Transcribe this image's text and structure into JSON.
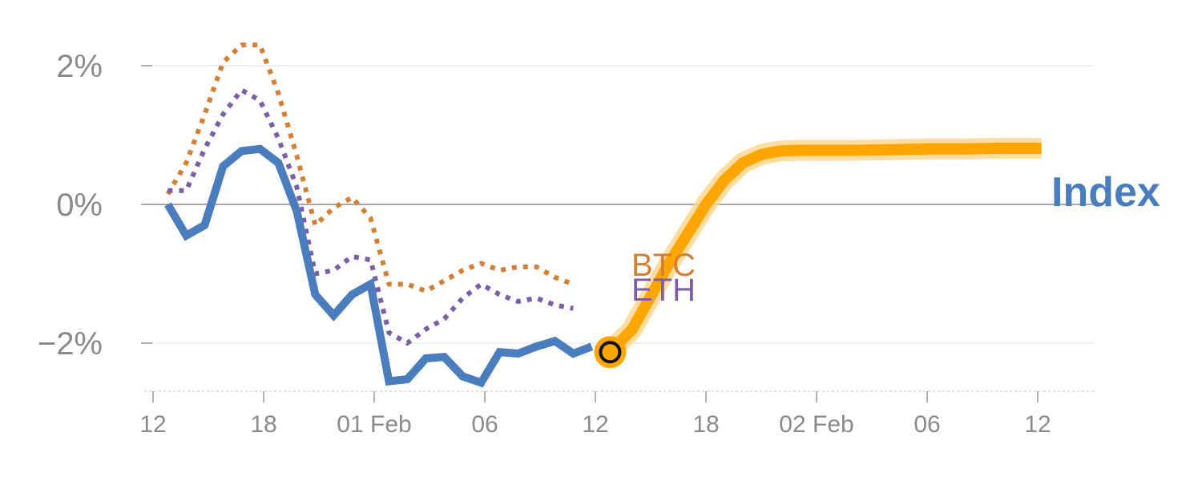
{
  "chart_data": {
    "type": "line",
    "title": "",
    "xlabel": "",
    "ylabel": "",
    "ylim": [
      -2.7,
      2.6
    ],
    "grid": true,
    "y_ticks": [
      {
        "value": 2,
        "label": "2%"
      },
      {
        "value": 0,
        "label": "0%"
      },
      {
        "value": -2,
        "label": "−2%"
      }
    ],
    "x_ticks": [
      {
        "index": 0,
        "label": "12"
      },
      {
        "index": 6,
        "label": "18"
      },
      {
        "index": 12,
        "label": "01 Feb"
      },
      {
        "index": 18,
        "label": "06"
      },
      {
        "index": 24,
        "label": "12"
      },
      {
        "index": 30,
        "label": "18"
      },
      {
        "index": 36,
        "label": "02 Feb"
      },
      {
        "index": 42,
        "label": "06"
      },
      {
        "index": 48,
        "label": "12"
      }
    ],
    "colors": {
      "index": "#4a7dbd",
      "btc": "#d47f33",
      "eth": "#7b5ea7",
      "forecast": "#ffa500",
      "forecast_glow": "#ffd58a",
      "marker_ring": "#ffa500",
      "marker_center": "#ffa500"
    },
    "series": [
      {
        "key": "index",
        "name": "Index",
        "style": "solid",
        "x_start": 0.8,
        "values": [
          0.0,
          -0.45,
          -0.3,
          0.55,
          0.77,
          0.8,
          0.6,
          -0.1,
          -1.3,
          -1.6,
          -1.3,
          -1.15,
          -2.55,
          -2.52,
          -2.22,
          -2.2,
          -2.48,
          -2.57,
          -2.13,
          -2.15,
          -2.05,
          -1.97,
          -2.15,
          -2.05
        ]
      },
      {
        "key": "btc",
        "name": "BTC",
        "style": "dotted",
        "x_start": 0.8,
        "values": [
          0.15,
          0.6,
          1.3,
          2.05,
          2.3,
          2.3,
          1.6,
          0.7,
          -0.3,
          -0.05,
          0.1,
          -0.2,
          -1.15,
          -1.15,
          -1.25,
          -1.1,
          -0.95,
          -0.85,
          -0.95,
          -0.9,
          -0.9,
          -1.05,
          -1.15
        ]
      },
      {
        "key": "eth",
        "name": "ETH",
        "style": "dotted",
        "x_start": 0.8,
        "values": [
          0.2,
          0.2,
          0.8,
          1.3,
          1.65,
          1.5,
          0.95,
          0.25,
          -1.0,
          -0.95,
          -0.75,
          -0.8,
          -1.85,
          -2.0,
          -1.8,
          -1.65,
          -1.35,
          -1.15,
          -1.3,
          -1.4,
          -1.35,
          -1.45,
          -1.5
        ]
      },
      {
        "key": "forecast",
        "name": "",
        "style": "forecast",
        "x": [
          24.8,
          26,
          28,
          30,
          31,
          32,
          33,
          34,
          35,
          36,
          37,
          38,
          40,
          42,
          44,
          46,
          48.2
        ],
        "values": [
          -2.13,
          -1.8,
          -0.85,
          0.0,
          0.35,
          0.6,
          0.72,
          0.77,
          0.78,
          0.78,
          0.78,
          0.78,
          0.79,
          0.8,
          0.8,
          0.81,
          0.81
        ]
      }
    ],
    "marker": {
      "x": 24.8,
      "value": -2.13
    },
    "labels": {
      "btc": "BTC",
      "eth": "ETH",
      "index": "Index"
    }
  }
}
